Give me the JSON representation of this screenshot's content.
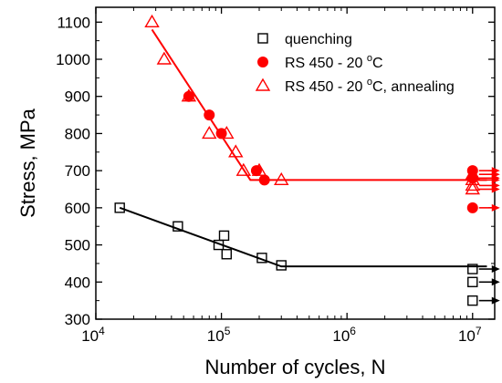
{
  "chart_data": {
    "type": "scatter",
    "title": "",
    "xlabel": "Number of cycles, N",
    "ylabel": "Stress, MPa",
    "xscale": "log",
    "xlim": [
      10000,
      15000000
    ],
    "ylim": [
      300,
      1140
    ],
    "grid": false,
    "legend_position": "top-right",
    "x_ticks": [
      {
        "value": 10000,
        "base": "10",
        "exp": "4"
      },
      {
        "value": 100000,
        "base": "10",
        "exp": "5"
      },
      {
        "value": 1000000,
        "base": "10",
        "exp": "6"
      },
      {
        "value": 10000000,
        "base": "10",
        "exp": "7"
      }
    ],
    "y_ticks": [
      300,
      400,
      500,
      600,
      700,
      800,
      900,
      1000,
      1100
    ],
    "series": [
      {
        "name": "quenching",
        "marker": "square-open",
        "color": "#000000",
        "points": [
          [
            15500,
            600
          ],
          [
            45000,
            550
          ],
          [
            95000,
            500
          ],
          [
            105000,
            525
          ],
          [
            110000,
            475
          ],
          [
            210000,
            465
          ],
          [
            300000,
            445
          ]
        ],
        "runouts": [
          [
            10000000,
            435
          ],
          [
            10000000,
            400
          ],
          [
            10000000,
            350
          ]
        ],
        "fit": [
          [
            15500,
            600
          ],
          [
            300000,
            442
          ],
          [
            13000000,
            442
          ]
        ]
      },
      {
        "name_parts": {
          "prefix": "RS 450 - 20 ",
          "sup": "o",
          "suffix": "C"
        },
        "marker": "circle-filled",
        "color": "#ff0000",
        "points": [
          [
            55000,
            900
          ],
          [
            80000,
            850
          ],
          [
            100000,
            800
          ],
          [
            190000,
            700
          ],
          [
            220000,
            675
          ]
        ],
        "runouts": [
          [
            10000000,
            700
          ],
          [
            10000000,
            680
          ],
          [
            10000000,
            600
          ]
        ],
        "fit": []
      },
      {
        "name_parts": {
          "prefix": "RS 450 - 20 ",
          "sup": "o",
          "suffix": "C, annealing"
        },
        "marker": "triangle-open",
        "color": "#ff0000",
        "points": [
          [
            28000,
            1100
          ],
          [
            35000,
            1000
          ],
          [
            55000,
            900
          ],
          [
            80000,
            800
          ],
          [
            110000,
            800
          ],
          [
            130000,
            750
          ],
          [
            150000,
            700
          ],
          [
            200000,
            700
          ],
          [
            300000,
            675
          ]
        ],
        "runouts": [
          [
            10000000,
            690
          ],
          [
            10000000,
            675
          ],
          [
            10000000,
            660
          ],
          [
            10000000,
            650
          ]
        ],
        "fit": [
          [
            28000,
            1080
          ],
          [
            170000,
            675
          ],
          [
            13000000,
            675
          ]
        ]
      }
    ]
  }
}
